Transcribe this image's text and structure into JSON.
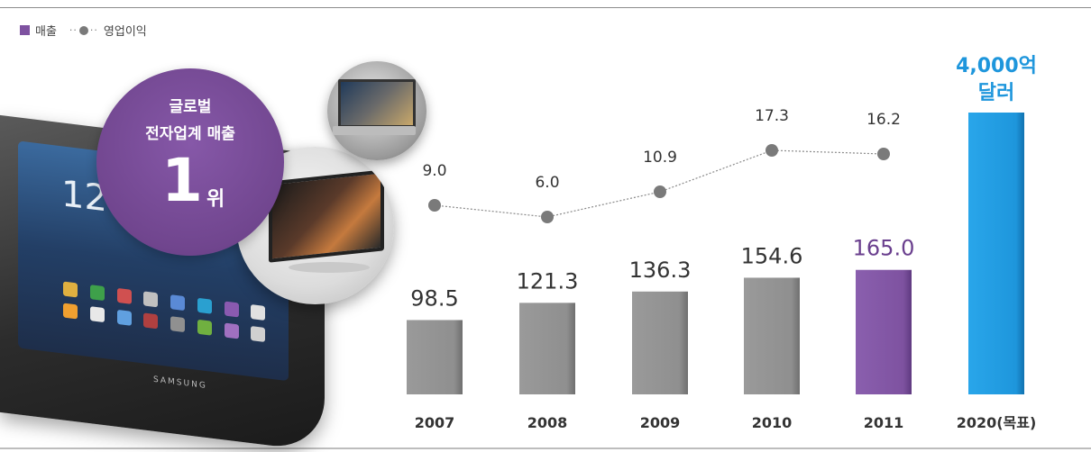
{
  "legend": {
    "bar_label": "매출",
    "line_label": "영업이익"
  },
  "badge": {
    "line1": "글로벌",
    "line2": "전자업계 매출",
    "rank": "1",
    "rank_unit": "위"
  },
  "illustration": {
    "tablet_clock": "12:",
    "tablet_brand": "SAMSUNG"
  },
  "colors": {
    "bar_gray": "#8f8f8f",
    "bar_purple": "#7e52a0",
    "bar_blue": "#1e96dc",
    "line_gray": "#7a7a7a"
  },
  "chart_data": {
    "type": "bar",
    "categories": [
      "2007",
      "2008",
      "2009",
      "2010",
      "2011",
      "2020(목표)"
    ],
    "series": [
      {
        "name": "매출",
        "values": [
          98.5,
          121.3,
          136.3,
          154.6,
          165.0,
          null
        ],
        "labels": [
          "98.5",
          "121.3",
          "136.3",
          "154.6",
          "165.0",
          ""
        ]
      },
      {
        "name": "영업이익",
        "type": "line",
        "values": [
          9.0,
          6.0,
          10.9,
          17.3,
          16.2,
          null
        ],
        "labels": [
          "9.0",
          "6.0",
          "10.9",
          "17.3",
          "16.2",
          ""
        ]
      }
    ],
    "target": {
      "category": "2020(목표)",
      "label_line1": "4,000억",
      "label_line2": "달러"
    },
    "grid": false,
    "legend_position": "top-left"
  }
}
